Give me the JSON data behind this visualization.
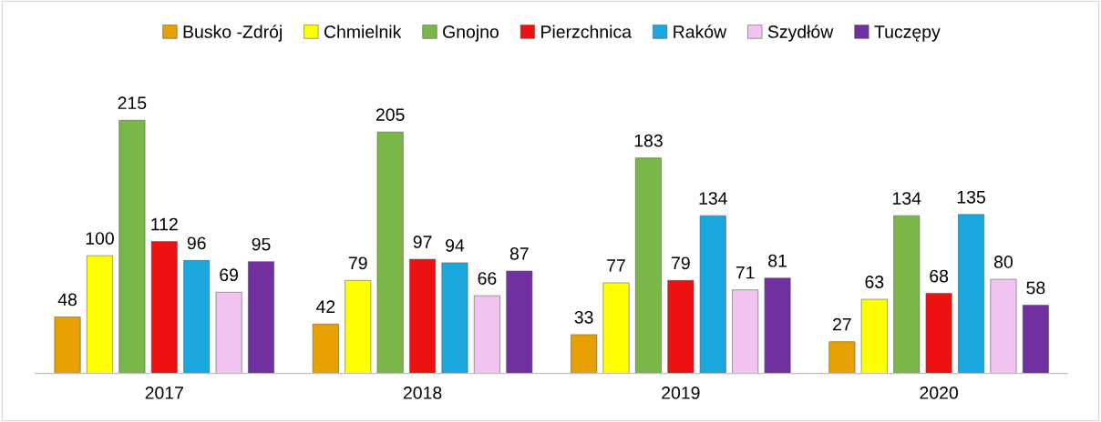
{
  "chart_data": {
    "type": "bar",
    "categories": [
      "2017",
      "2018",
      "2019",
      "2020"
    ],
    "series": [
      {
        "name": "Busko -Zdrój",
        "color": "#e6a100",
        "values": [
          48,
          42,
          33,
          27
        ]
      },
      {
        "name": "Chmielnik",
        "color": "#ffff00",
        "values": [
          100,
          79,
          77,
          63
        ]
      },
      {
        "name": "Gnojno",
        "color": "#7ab648",
        "values": [
          215,
          205,
          183,
          134
        ]
      },
      {
        "name": "Pierzchnica",
        "color": "#ee1111",
        "values": [
          112,
          97,
          79,
          68
        ]
      },
      {
        "name": "Raków",
        "color": "#1aa7dd",
        "values": [
          96,
          94,
          134,
          135
        ]
      },
      {
        "name": "Szydłów",
        "color": "#f0c4ee",
        "values": [
          69,
          66,
          71,
          80
        ]
      },
      {
        "name": "Tuczępy",
        "color": "#7030a0",
        "values": [
          95,
          87,
          81,
          58
        ]
      }
    ],
    "data_labels": true,
    "legend": "top",
    "grid": false
  }
}
